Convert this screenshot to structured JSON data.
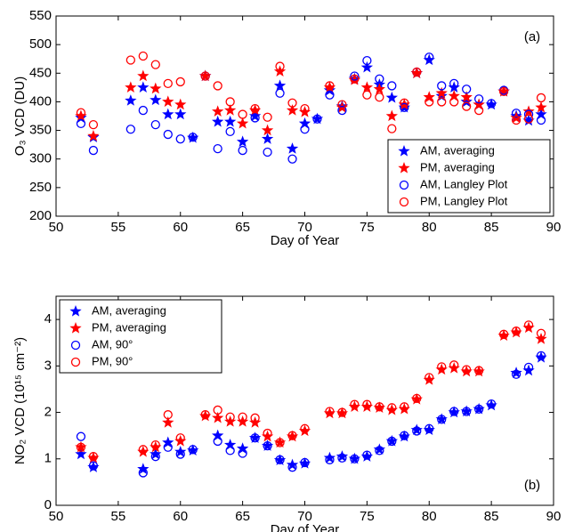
{
  "chart_data": [
    {
      "type": "scatter",
      "annotation": "(a)",
      "xlabel": "Day of Year",
      "ylabel": "O₃ VCD (DU)",
      "xlim": [
        50,
        90
      ],
      "xticks": [
        50,
        55,
        60,
        65,
        70,
        75,
        80,
        85,
        90
      ],
      "ylim": [
        200,
        550
      ],
      "yticks": [
        200,
        250,
        300,
        350,
        400,
        450,
        500,
        550
      ],
      "legend": "lower right",
      "x": [
        52,
        53,
        56,
        57,
        58,
        59,
        60,
        61,
        62,
        63,
        64,
        65,
        66,
        67,
        68,
        69,
        70,
        71,
        72,
        73,
        74,
        75,
        76,
        77,
        78,
        79,
        80,
        81,
        82,
        83,
        84,
        85,
        86,
        87,
        88,
        89
      ],
      "series": [
        {
          "name": "AM, averaging",
          "color": "#0000ff",
          "marker": "star",
          "values": [
            372,
            338,
            402,
            425,
            403,
            378,
            378,
            337,
            445,
            365,
            365,
            330,
            375,
            335,
            428,
            318,
            362,
            370,
            420,
            392,
            440,
            460,
            430,
            407,
            390,
            450,
            473,
            410,
            425,
            400,
            395,
            395,
            418,
            375,
            367,
            378
          ]
        },
        {
          "name": "PM, averaging",
          "color": "#ff0000",
          "marker": "star",
          "values": [
            375,
            340,
            425,
            445,
            423,
            400,
            395,
            null,
            445,
            383,
            385,
            362,
            385,
            350,
            453,
            385,
            382,
            null,
            425,
            390,
            438,
            425,
            422,
            375,
            395,
            450,
            408,
            415,
            410,
            408,
            395,
            null,
            418,
            372,
            383,
            390
          ]
        },
        {
          "name": "AM, Langley Plot",
          "color": "#0000ff",
          "marker": "circle",
          "values": [
            362,
            315,
            352,
            385,
            360,
            343,
            335,
            338,
            445,
            318,
            348,
            315,
            372,
            312,
            415,
            300,
            352,
            370,
            412,
            385,
            445,
            472,
            440,
            428,
            390,
            452,
            478,
            428,
            432,
            422,
            405,
            397,
            420,
            380,
            378,
            368
          ]
        },
        {
          "name": "PM, Langley Plot",
          "color": "#ff0000",
          "marker": "circle",
          "values": [
            381,
            360,
            473,
            480,
            465,
            432,
            435,
            null,
            445,
            428,
            400,
            378,
            388,
            373,
            462,
            398,
            388,
            null,
            428,
            395,
            440,
            412,
            408,
            353,
            398,
            452,
            400,
            400,
            400,
            392,
            385,
            null,
            418,
            368,
            370,
            407
          ]
        }
      ]
    },
    {
      "type": "scatter",
      "annotation": "(b)",
      "xlabel": "Day of Year",
      "ylabel": "NO₂ VCD (10¹⁵ cm⁻²)",
      "xlim": [
        50,
        90
      ],
      "xticks": [
        50,
        55,
        60,
        65,
        70,
        75,
        80,
        85,
        90
      ],
      "ylim": [
        0,
        4.5
      ],
      "yticks": [
        0,
        1,
        2,
        3,
        4
      ],
      "legend": "upper left",
      "x": [
        52,
        53,
        57,
        58,
        59,
        60,
        61,
        62,
        63,
        64,
        65,
        66,
        67,
        68,
        69,
        70,
        72,
        73,
        74,
        75,
        76,
        77,
        78,
        79,
        80,
        81,
        82,
        83,
        84,
        85,
        86,
        87,
        88,
        89
      ],
      "series": [
        {
          "name": "AM, averaging",
          "color": "#0000ff",
          "marker": "star",
          "values": [
            1.1,
            0.82,
            0.78,
            1.1,
            1.35,
            1.15,
            1.18,
            null,
            1.5,
            1.3,
            1.22,
            1.45,
            1.28,
            0.97,
            0.87,
            0.9,
            1.02,
            1.05,
            1.0,
            1.05,
            1.2,
            1.38,
            1.48,
            1.62,
            1.62,
            1.85,
            2.0,
            2.02,
            2.07,
            2.15,
            null,
            2.85,
            2.9,
            3.18
          ]
        },
        {
          "name": "PM, averaging",
          "color": "#ff0000",
          "marker": "star",
          "values": [
            1.25,
            1.02,
            1.15,
            1.25,
            1.78,
            1.38,
            null,
            1.92,
            1.88,
            1.8,
            1.8,
            1.78,
            1.48,
            1.35,
            1.48,
            1.6,
            1.98,
            1.98,
            2.12,
            2.12,
            2.1,
            2.05,
            2.07,
            2.28,
            2.7,
            2.92,
            2.95,
            2.88,
            2.88,
            null,
            3.65,
            3.72,
            3.82,
            3.58
          ]
        },
        {
          "name": "AM, 90°",
          "color": "#0000ff",
          "marker": "circle",
          "values": [
            1.48,
            0.85,
            0.7,
            1.05,
            1.25,
            1.1,
            1.2,
            null,
            1.38,
            1.18,
            1.12,
            1.45,
            1.28,
            0.98,
            0.82,
            0.92,
            0.98,
            1.02,
            1.0,
            1.08,
            1.18,
            1.38,
            1.5,
            1.6,
            1.65,
            1.85,
            2.02,
            2.02,
            2.07,
            2.18,
            null,
            2.82,
            2.97,
            3.22
          ]
        },
        {
          "name": "PM, 90°",
          "color": "#ff0000",
          "marker": "circle",
          "values": [
            1.25,
            1.05,
            1.2,
            1.3,
            1.95,
            1.45,
            null,
            1.95,
            2.05,
            1.9,
            1.9,
            1.88,
            1.55,
            1.35,
            1.5,
            1.65,
            2.02,
            2.0,
            2.17,
            2.17,
            2.12,
            2.1,
            2.12,
            2.3,
            2.75,
            2.98,
            3.02,
            2.92,
            2.9,
            null,
            3.68,
            3.75,
            3.88,
            3.7
          ]
        }
      ]
    }
  ]
}
